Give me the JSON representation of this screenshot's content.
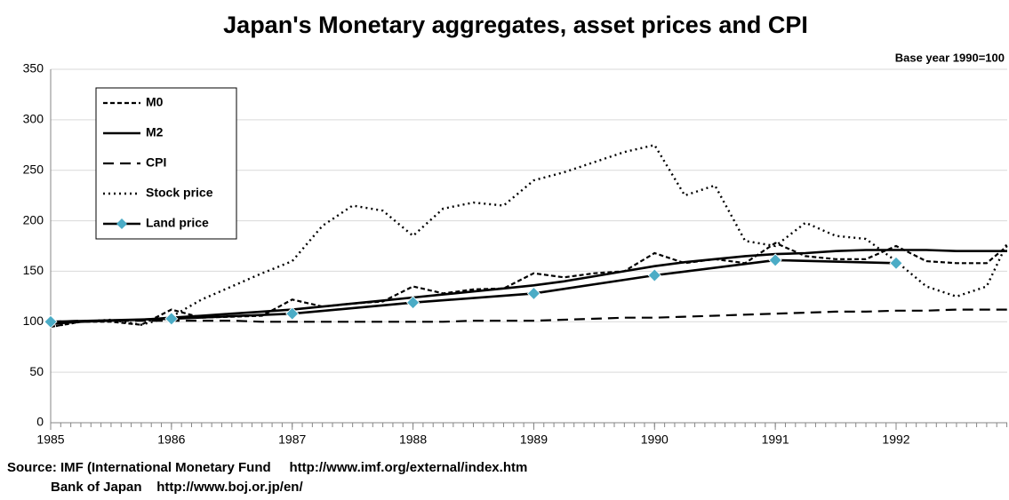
{
  "chart_data": {
    "type": "line",
    "title": "Japan's Monetary aggregates, asset prices and CPI",
    "subtitle": "Base year 1990=100",
    "source": [
      "Source: IMF (International Monetary Fund     http://www.imf.org/external/index.htm",
      "Bank of Japan    http://www.boj.or.jp/en/"
    ],
    "x": [
      1985,
      1985.25,
      1985.5,
      1985.75,
      1986,
      1986.25,
      1986.5,
      1986.75,
      1987,
      1987.25,
      1987.5,
      1987.75,
      1988,
      1988.25,
      1988.5,
      1988.75,
      1989,
      1989.25,
      1989.5,
      1989.75,
      1990,
      1990.25,
      1990.5,
      1990.75,
      1991,
      1991.25,
      1991.5,
      1991.75,
      1992,
      1992.25,
      1992.5,
      1992.75,
      1992.92
    ],
    "series": [
      {
        "name": "M0",
        "color": "#000000",
        "values": [
          95,
          100,
          100,
          97,
          112,
          104,
          105,
          106,
          122,
          115,
          118,
          120,
          135,
          128,
          132,
          133,
          148,
          144,
          148,
          150,
          168,
          158,
          162,
          158,
          178,
          165,
          162,
          162,
          175,
          160,
          158,
          158,
          175
        ]
      },
      {
        "name": "M2",
        "color": "#000000",
        "values": [
          98,
          100,
          101,
          102,
          104,
          106,
          108,
          110,
          112,
          115,
          118,
          121,
          124,
          127,
          130,
          133,
          136,
          140,
          145,
          150,
          155,
          159,
          162,
          165,
          167,
          168,
          170,
          171,
          171,
          171,
          170,
          170,
          170
        ]
      },
      {
        "name": "CPI",
        "color": "#000000",
        "values": [
          100,
          101,
          101,
          101,
          101,
          101,
          101,
          100,
          100,
          100,
          100,
          100,
          100,
          100,
          101,
          101,
          101,
          102,
          103,
          104,
          104,
          105,
          106,
          107,
          108,
          109,
          110,
          110,
          111,
          111,
          112,
          112,
          112
        ]
      },
      {
        "name": "Stock price",
        "color": "#000000",
        "values": [
          95,
          100,
          102,
          97,
          105,
          122,
          135,
          148,
          160,
          195,
          215,
          210,
          185,
          212,
          218,
          215,
          240,
          248,
          258,
          268,
          275,
          225,
          235,
          180,
          175,
          198,
          185,
          182,
          160,
          135,
          125,
          135,
          178
        ]
      },
      {
        "name": "Land price",
        "color": "#000000",
        "marker_color": "#4bacc6",
        "x": [
          1985,
          1986,
          1987,
          1988,
          1989,
          1990,
          1991,
          1992
        ],
        "values": [
          100,
          103,
          108,
          119,
          128,
          146,
          161,
          158
        ]
      }
    ],
    "xlim": [
      1985,
      1992.92
    ],
    "xticks": [
      1985,
      1986,
      1987,
      1988,
      1989,
      1990,
      1991,
      1992
    ],
    "ylim": [
      0,
      350
    ],
    "yticks": [
      0,
      50,
      100,
      150,
      200,
      250,
      300,
      350
    ],
    "grid": true,
    "legend": "upper left"
  }
}
